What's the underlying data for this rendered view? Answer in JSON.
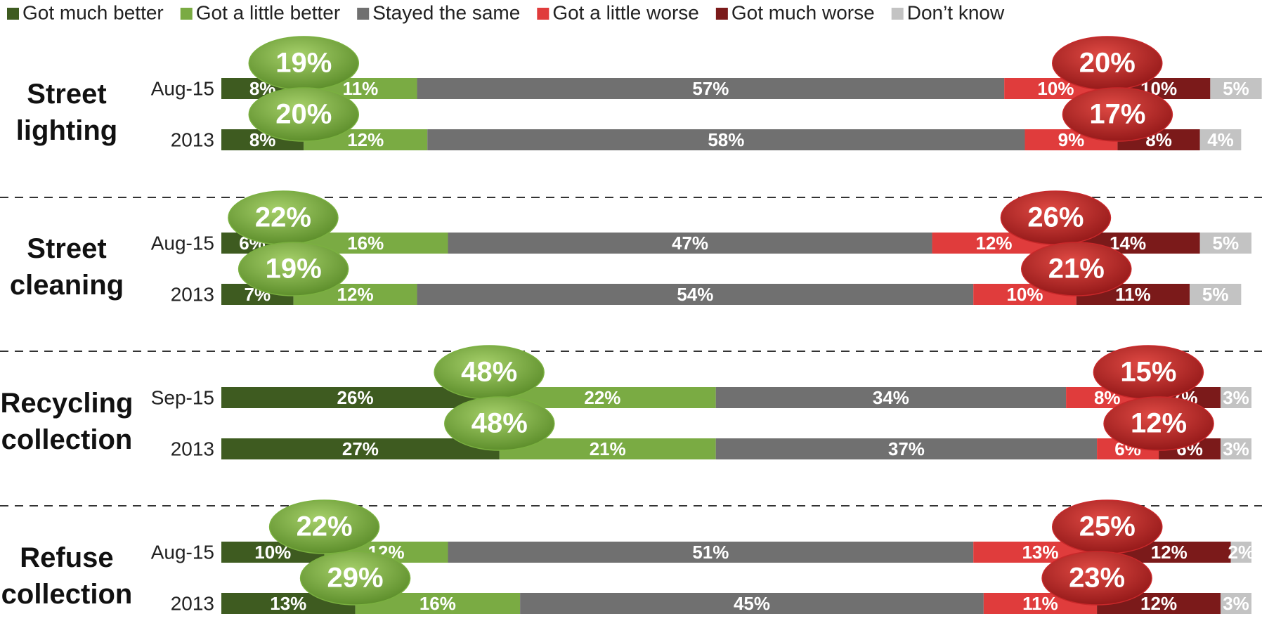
{
  "chart_data": {
    "type": "stacked-bar",
    "xlim": [
      0,
      100
    ],
    "groups": [
      [
        "Street",
        "lighting"
      ],
      [
        "Street",
        "cleaning"
      ],
      [
        "Recycling",
        "collection"
      ],
      [
        "Refuse",
        "collection"
      ]
    ],
    "categories": [
      "Aug-15",
      "2013",
      "Aug-15",
      "2013",
      "Sep-15",
      "2013",
      "Aug-15",
      "2013"
    ],
    "series": [
      {
        "name": "Got much better",
        "color": "#3e5b20",
        "values": [
          8,
          8,
          6,
          7,
          26,
          27,
          10,
          13
        ],
        "value_labels": [
          "8%",
          "8%",
          "6%",
          "7%",
          "26%",
          "27%",
          "10%",
          "13%"
        ]
      },
      {
        "name": "Got a little better",
        "color": "#7aab43",
        "values": [
          11,
          12,
          16,
          12,
          22,
          21,
          12,
          16
        ],
        "value_labels": [
          "11%",
          "12%",
          "16%",
          "12%",
          "22%",
          "21%",
          "12%",
          "16%"
        ]
      },
      {
        "name": "Stayed the same",
        "color": "#707070",
        "values": [
          57,
          58,
          47,
          54,
          34,
          37,
          51,
          45
        ],
        "value_labels": [
          "57%",
          "58%",
          "47%",
          "54%",
          "34%",
          "37%",
          "51%",
          "45%"
        ]
      },
      {
        "name": "Got a little worse",
        "color": "#e03c3c",
        "values": [
          10,
          9,
          12,
          10,
          8,
          6,
          13,
          11
        ],
        "value_labels": [
          "10%",
          "9%",
          "12%",
          "10%",
          "8%",
          "6%",
          "13%",
          "11%"
        ]
      },
      {
        "name": "Got much worse",
        "color": "#7b1a1a",
        "values": [
          10,
          8,
          14,
          11,
          7,
          6,
          12,
          12
        ],
        "value_labels": [
          "10%",
          "8%",
          "14%",
          "11%",
          "7%",
          "6%",
          "12%",
          "12%"
        ]
      },
      {
        "name": "Don’t know",
        "color": "#c3c3c3",
        "values": [
          5,
          4,
          5,
          5,
          3,
          3,
          2,
          3
        ],
        "value_labels": [
          "5%",
          "4%",
          "5%",
          "5%",
          "3%",
          "3%",
          "2%",
          "3%"
        ]
      }
    ],
    "bubbles_better": {
      "color": "#7ab040",
      "values": [
        19,
        20,
        22,
        19,
        48,
        48,
        22,
        29
      ],
      "value_labels": [
        "19%",
        "20%",
        "22%",
        "19%",
        "48%",
        "48%",
        "22%",
        "29%"
      ]
    },
    "bubbles_worse": {
      "color": "#c8282a",
      "values": [
        20,
        17,
        26,
        21,
        15,
        12,
        25,
        23
      ],
      "value_labels": [
        "20%",
        "17%",
        "26%",
        "21%",
        "15%",
        "12%",
        "25%",
        "23%"
      ]
    }
  }
}
